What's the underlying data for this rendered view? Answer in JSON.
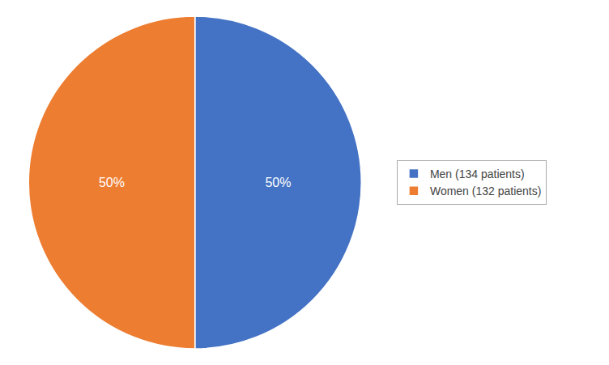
{
  "chart_data": {
    "type": "pie",
    "categories": [
      "Men (134 patients)",
      "Women (132 patients)"
    ],
    "values": [
      50,
      50
    ],
    "value_labels": [
      "50%",
      "50%"
    ],
    "colors": [
      "#4472C4",
      "#ED7D31"
    ],
    "data_labels": true,
    "legend": "right"
  }
}
